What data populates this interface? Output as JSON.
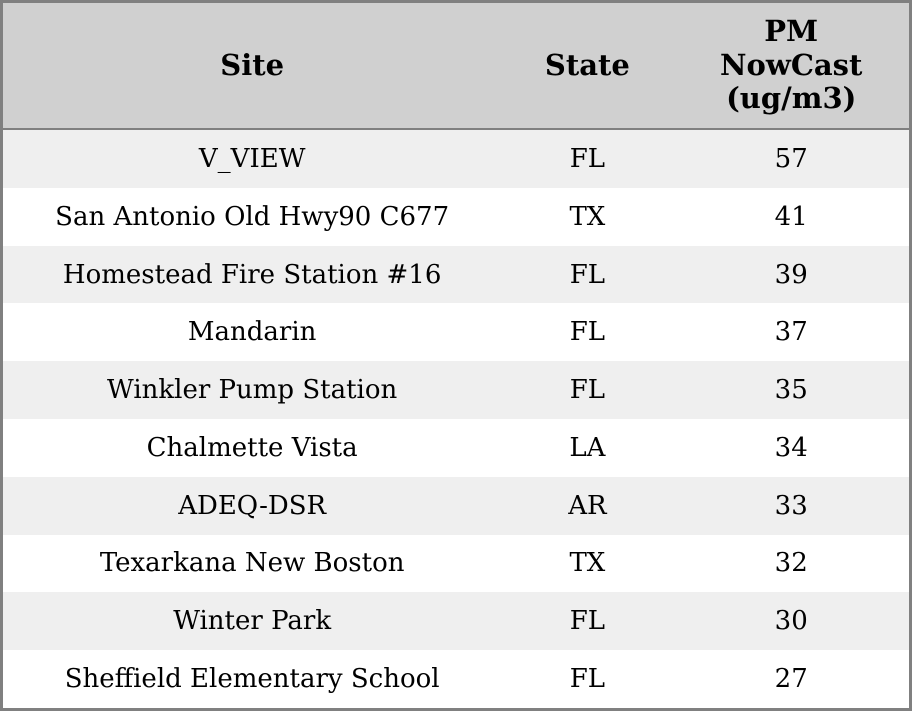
{
  "colors": {
    "outer_border": "#808080",
    "header_background": "#d0d0d0",
    "header_separator": "#808080",
    "row_stripe": "#efefef",
    "row_plain": "#ffffff",
    "text": "#000000"
  },
  "table": {
    "headers": [
      "Site",
      "State",
      "PM\nNowCast\n(ug/m3)"
    ],
    "rows": [
      [
        "V_VIEW",
        "FL",
        "57"
      ],
      [
        "San Antonio Old Hwy90 C677",
        "TX",
        "41"
      ],
      [
        "Homestead Fire Station #16",
        "FL",
        "39"
      ],
      [
        "Mandarin",
        "FL",
        "37"
      ],
      [
        "Winkler Pump Station",
        "FL",
        "35"
      ],
      [
        "Chalmette Vista",
        "LA",
        "34"
      ],
      [
        "ADEQ-DSR",
        "AR",
        "33"
      ],
      [
        "Texarkana New Boston",
        "TX",
        "32"
      ],
      [
        "Winter Park",
        "FL",
        "30"
      ],
      [
        "Sheffield Elementary School",
        "FL",
        "27"
      ]
    ]
  },
  "chart_data": {
    "type": "table",
    "title": "",
    "columns": [
      "Site",
      "State",
      "PM NowCast (ug/m3)"
    ],
    "rows": [
      {
        "site": "V_VIEW",
        "state": "FL",
        "pm_nowcast_ugm3": 57
      },
      {
        "site": "San Antonio Old Hwy90 C677",
        "state": "TX",
        "pm_nowcast_ugm3": 41
      },
      {
        "site": "Homestead Fire Station #16",
        "state": "FL",
        "pm_nowcast_ugm3": 39
      },
      {
        "site": "Mandarin",
        "state": "FL",
        "pm_nowcast_ugm3": 37
      },
      {
        "site": "Winkler Pump Station",
        "state": "FL",
        "pm_nowcast_ugm3": 35
      },
      {
        "site": "Chalmette Vista",
        "state": "LA",
        "pm_nowcast_ugm3": 34
      },
      {
        "site": "ADEQ-DSR",
        "state": "AR",
        "pm_nowcast_ugm3": 33
      },
      {
        "site": "Texarkana New Boston",
        "state": "TX",
        "pm_nowcast_ugm3": 32
      },
      {
        "site": "Winter Park",
        "state": "FL",
        "pm_nowcast_ugm3": 30
      },
      {
        "site": "Sheffield Elementary School",
        "state": "FL",
        "pm_nowcast_ugm3": 27
      }
    ],
    "layout_hints": {
      "zebra_striping": true,
      "header_lines_third_column": [
        "PM",
        "NowCast",
        "(ug/m3)"
      ],
      "alignment": "center"
    }
  }
}
